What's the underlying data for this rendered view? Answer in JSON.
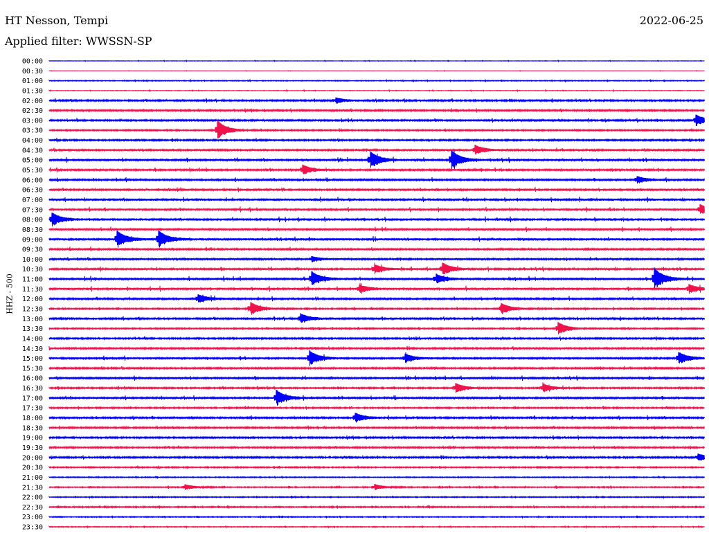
{
  "header": {
    "station": "HT Nesson, Tempi",
    "date": "2022-06-25",
    "filter": "Applied filter: WWSSN-SP"
  },
  "chart_data": {
    "type": "line",
    "title": "HT Nesson, Tempi",
    "ylabel": "HHZ - 500",
    "minutes_per_line": 30,
    "colors": [
      "#0000ff",
      "#f0124a"
    ],
    "time_labels": [
      "00:00",
      "00:30",
      "01:00",
      "01:30",
      "02:00",
      "02:30",
      "03:00",
      "03:30",
      "04:00",
      "04:30",
      "05:00",
      "05:30",
      "06:00",
      "06:30",
      "07:00",
      "07:30",
      "08:00",
      "08:30",
      "09:00",
      "09:30",
      "10:00",
      "10:30",
      "11:00",
      "11:30",
      "12:00",
      "12:30",
      "13:00",
      "13:30",
      "14:00",
      "14:30",
      "15:00",
      "15:30",
      "16:00",
      "16:30",
      "17:00",
      "17:30",
      "18:00",
      "18:30",
      "19:00",
      "19:30",
      "20:00",
      "20:30",
      "21:00",
      "21:30",
      "22:00",
      "22:30",
      "23:00",
      "23:30"
    ],
    "noise_level": [
      0.3,
      0.2,
      0.6,
      0.4,
      1.2,
      1.2,
      1.3,
      1.0,
      1.2,
      1.3,
      1.4,
      1.3,
      1.3,
      1.3,
      1.5,
      1.5,
      1.6,
      1.5,
      1.6,
      1.3,
      1.3,
      1.3,
      1.5,
      1.6,
      1.4,
      1.0,
      1.3,
      1.0,
      1.2,
      1.2,
      1.4,
      1.2,
      1.3,
      1.1,
      1.4,
      1.0,
      1.3,
      1.1,
      1.2,
      1.1,
      1.2,
      0.9,
      0.7,
      0.8,
      0.7,
      0.9,
      0.7,
      0.6
    ],
    "events": [
      {
        "line": 4,
        "minute": 13.1,
        "amplitude": 4
      },
      {
        "line": 6,
        "minute": 29.6,
        "amplitude": 8
      },
      {
        "line": 7,
        "minute": 7.7,
        "amplitude": 14
      },
      {
        "line": 9,
        "minute": 19.5,
        "amplitude": 7
      },
      {
        "line": 10,
        "minute": 14.7,
        "amplitude": 12
      },
      {
        "line": 10,
        "minute": 18.4,
        "amplitude": 14
      },
      {
        "line": 11,
        "minute": 11.6,
        "amplitude": 7
      },
      {
        "line": 12,
        "minute": 26.9,
        "amplitude": 5
      },
      {
        "line": 15,
        "minute": 29.8,
        "amplitude": 7
      },
      {
        "line": 16,
        "minute": 0.1,
        "amplitude": 10
      },
      {
        "line": 18,
        "minute": 3.1,
        "amplitude": 12
      },
      {
        "line": 18,
        "minute": 5.0,
        "amplitude": 12
      },
      {
        "line": 20,
        "minute": 12.0,
        "amplitude": 4
      },
      {
        "line": 21,
        "minute": 14.9,
        "amplitude": 6
      },
      {
        "line": 21,
        "minute": 18.0,
        "amplitude": 9
      },
      {
        "line": 22,
        "minute": 12.0,
        "amplitude": 11
      },
      {
        "line": 22,
        "minute": 17.7,
        "amplitude": 7
      },
      {
        "line": 22,
        "minute": 27.7,
        "amplitude": 16
      },
      {
        "line": 23,
        "minute": 14.2,
        "amplitude": 5
      },
      {
        "line": 23,
        "minute": 29.3,
        "amplitude": 6
      },
      {
        "line": 24,
        "minute": 6.8,
        "amplitude": 6
      },
      {
        "line": 25,
        "minute": 9.2,
        "amplitude": 10
      },
      {
        "line": 25,
        "minute": 20.7,
        "amplitude": 8
      },
      {
        "line": 26,
        "minute": 11.5,
        "amplitude": 7
      },
      {
        "line": 27,
        "minute": 23.3,
        "amplitude": 9
      },
      {
        "line": 30,
        "minute": 11.9,
        "amplitude": 11
      },
      {
        "line": 30,
        "minute": 16.3,
        "amplitude": 6
      },
      {
        "line": 30,
        "minute": 28.8,
        "amplitude": 9
      },
      {
        "line": 33,
        "minute": 18.6,
        "amplitude": 7
      },
      {
        "line": 33,
        "minute": 22.6,
        "amplitude": 6
      },
      {
        "line": 34,
        "minute": 10.4,
        "amplitude": 11
      },
      {
        "line": 36,
        "minute": 14.0,
        "amplitude": 7
      },
      {
        "line": 40,
        "minute": 29.7,
        "amplitude": 5
      },
      {
        "line": 43,
        "minute": 6.2,
        "amplitude": 4
      },
      {
        "line": 43,
        "minute": 14.9,
        "amplitude": 4
      }
    ]
  }
}
